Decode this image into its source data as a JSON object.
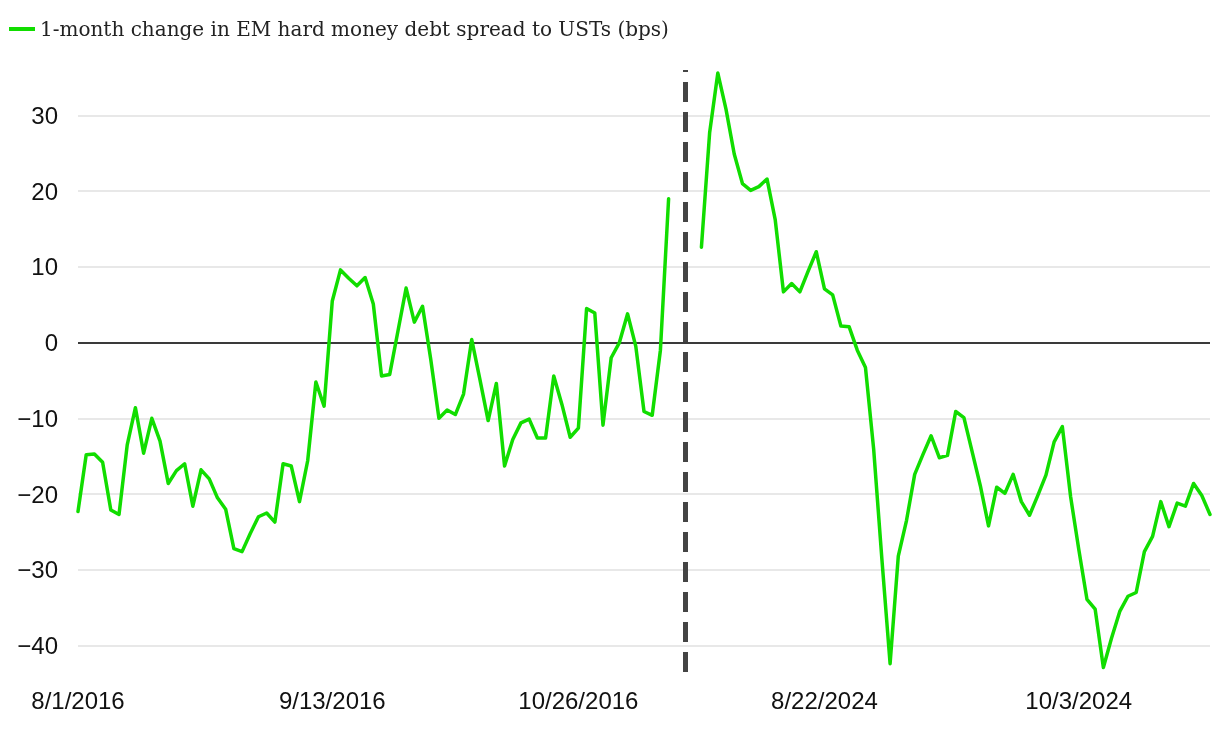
{
  "chart_data": {
    "type": "line",
    "categories": [
      "8/1/2016",
      null,
      null,
      null,
      null,
      null,
      null,
      null,
      null,
      null,
      null,
      null,
      null,
      null,
      null,
      null,
      null,
      null,
      null,
      null,
      null,
      null,
      null,
      null,
      null,
      null,
      null,
      null,
      null,
      null,
      null,
      "9/13/2016",
      null,
      null,
      null,
      null,
      null,
      null,
      null,
      null,
      null,
      null,
      null,
      null,
      null,
      null,
      null,
      null,
      null,
      null,
      null,
      null,
      null,
      null,
      null,
      null,
      null,
      null,
      null,
      null,
      null,
      "10/26/2016",
      null,
      null,
      null,
      null,
      null,
      null,
      null,
      null,
      null,
      null,
      null,
      null,
      null,
      null,
      null,
      null,
      null,
      null,
      null,
      null,
      null,
      null,
      null,
      null,
      null,
      null,
      null,
      null,
      null,
      "8/22/2024",
      null,
      null,
      null,
      null,
      null,
      null,
      null,
      null,
      null,
      null,
      null,
      null,
      null,
      null,
      null,
      null,
      null,
      null,
      null,
      null,
      null,
      null,
      null,
      null,
      null,
      null,
      null,
      null,
      null,
      null,
      "10/3/2024",
      null,
      null,
      null,
      null,
      null,
      null,
      null,
      null,
      null,
      null,
      null,
      null,
      null,
      null,
      null,
      null
    ],
    "series": [
      {
        "name": "1-month change in EM hard money debt spread to USTs (bps)",
        "color": "#11dd00",
        "values": [
          -22.3,
          -14.8,
          -14.7,
          -15.8,
          -22.1,
          -22.7,
          -13.5,
          -8.6,
          -14.6,
          -10,
          -13,
          -18.6,
          -16.9,
          -16,
          -21.6,
          -16.8,
          -18,
          -20.5,
          -22,
          -27.2,
          -27.6,
          -25.2,
          -23,
          -22.5,
          -23.7,
          -16,
          -16.3,
          -21,
          -15.6,
          -5.2,
          -8.4,
          5.5,
          9.6,
          8.5,
          7.5,
          8.6,
          5.1,
          -4.4,
          -4.2,
          1.5,
          7.2,
          2.7,
          4.8,
          -2.2,
          -10,
          -8.9,
          -9.5,
          -6.8,
          0.4,
          -4.9,
          -10.3,
          -5.4,
          -16.3,
          -12.8,
          -10.6,
          -10.1,
          -12.6,
          -12.6,
          -4.4,
          -8.2,
          -12.5,
          -11.3,
          4.5,
          3.9,
          -10.9,
          -2,
          0,
          3.8,
          -0.5,
          -9.1,
          -9.6,
          -1,
          19,
          null,
          null,
          null,
          12.6,
          27.7,
          35.6,
          30.8,
          24.9,
          21.0,
          20.1,
          20.6,
          21.6,
          16.2,
          6.7,
          7.8,
          6.7,
          9.4,
          12.0,
          7.1,
          6.3,
          2.2,
          2.1,
          -1.0,
          -3.3,
          -14.1,
          -28.6,
          -42.4,
          -28.2,
          -23.5,
          -17.4,
          -14.8,
          -12.3,
          -15.2,
          -14.9,
          -9.1,
          -9.9,
          -14.4,
          -18.9,
          -24.2,
          -19.1,
          -19.9,
          -17.4,
          -21.0,
          -22.8,
          -20.2,
          -17.5,
          -13.1,
          -11.1,
          -20.3,
          -27.3,
          -33.9,
          -35.2,
          -42.9,
          -39.0,
          -35.5,
          -33.5,
          -33.0,
          -27.6,
          -25.6,
          -21.0,
          -24.3,
          -21.2,
          -21.6,
          -18.6,
          -20.2,
          -22.7
        ]
      }
    ],
    "ylim": [
      -43.5,
      36
    ],
    "yticks": [
      -40,
      -30,
      -20,
      -10,
      0,
      10,
      20,
      30
    ],
    "grid": "y",
    "legend": "top left",
    "marker": "none",
    "line_style": "solid",
    "ref_lines": [
      {
        "axis": "y",
        "value": 0,
        "color": "#000000",
        "line_style": "solid"
      }
    ]
  }
}
